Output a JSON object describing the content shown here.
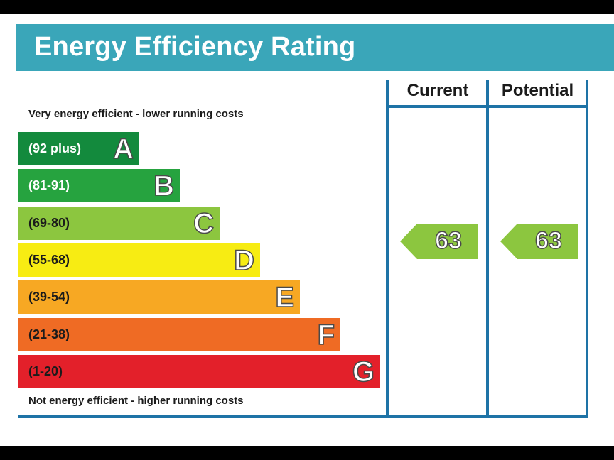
{
  "title": "Energy Efficiency Rating",
  "top_caption": "Very energy efficient - lower running costs",
  "bottom_caption": "Not energy efficient - higher running costs",
  "colors": {
    "title_bar": "#3aa6b9",
    "frame": "#1e73a6",
    "band_A": "#138a3d",
    "band_B": "#26a33f",
    "band_C": "#8cc63f",
    "band_D": "#f7ec13",
    "band_E": "#f7a823",
    "band_F": "#ef6b24",
    "band_G": "#e3202a",
    "rating_arrow": "#8cc63f"
  },
  "chart_data": {
    "type": "bar",
    "categories": [
      "A",
      "B",
      "C",
      "D",
      "E",
      "F",
      "G"
    ],
    "bands": [
      {
        "letter": "A",
        "range": "(92 plus)",
        "color": "#138a3d",
        "range_color": "#ffffff"
      },
      {
        "letter": "B",
        "range": "(81-91)",
        "color": "#26a33f",
        "range_color": "#ffffff"
      },
      {
        "letter": "C",
        "range": "(69-80)",
        "color": "#8cc63f",
        "range_color": "#1b1b1b"
      },
      {
        "letter": "D",
        "range": "(55-68)",
        "color": "#f7ec13",
        "range_color": "#1b1b1b"
      },
      {
        "letter": "E",
        "range": "(39-54)",
        "color": "#f7a823",
        "range_color": "#1b1b1b"
      },
      {
        "letter": "F",
        "range": "(21-38)",
        "color": "#ef6b24",
        "range_color": "#1b1b1b"
      },
      {
        "letter": "G",
        "range": "(1-20)",
        "color": "#e3202a",
        "range_color": "#1b1b1b"
      }
    ],
    "columns": [
      {
        "header": "Current",
        "value": 63,
        "band": "D"
      },
      {
        "header": "Potential",
        "value": 63,
        "band": "D"
      }
    ]
  }
}
